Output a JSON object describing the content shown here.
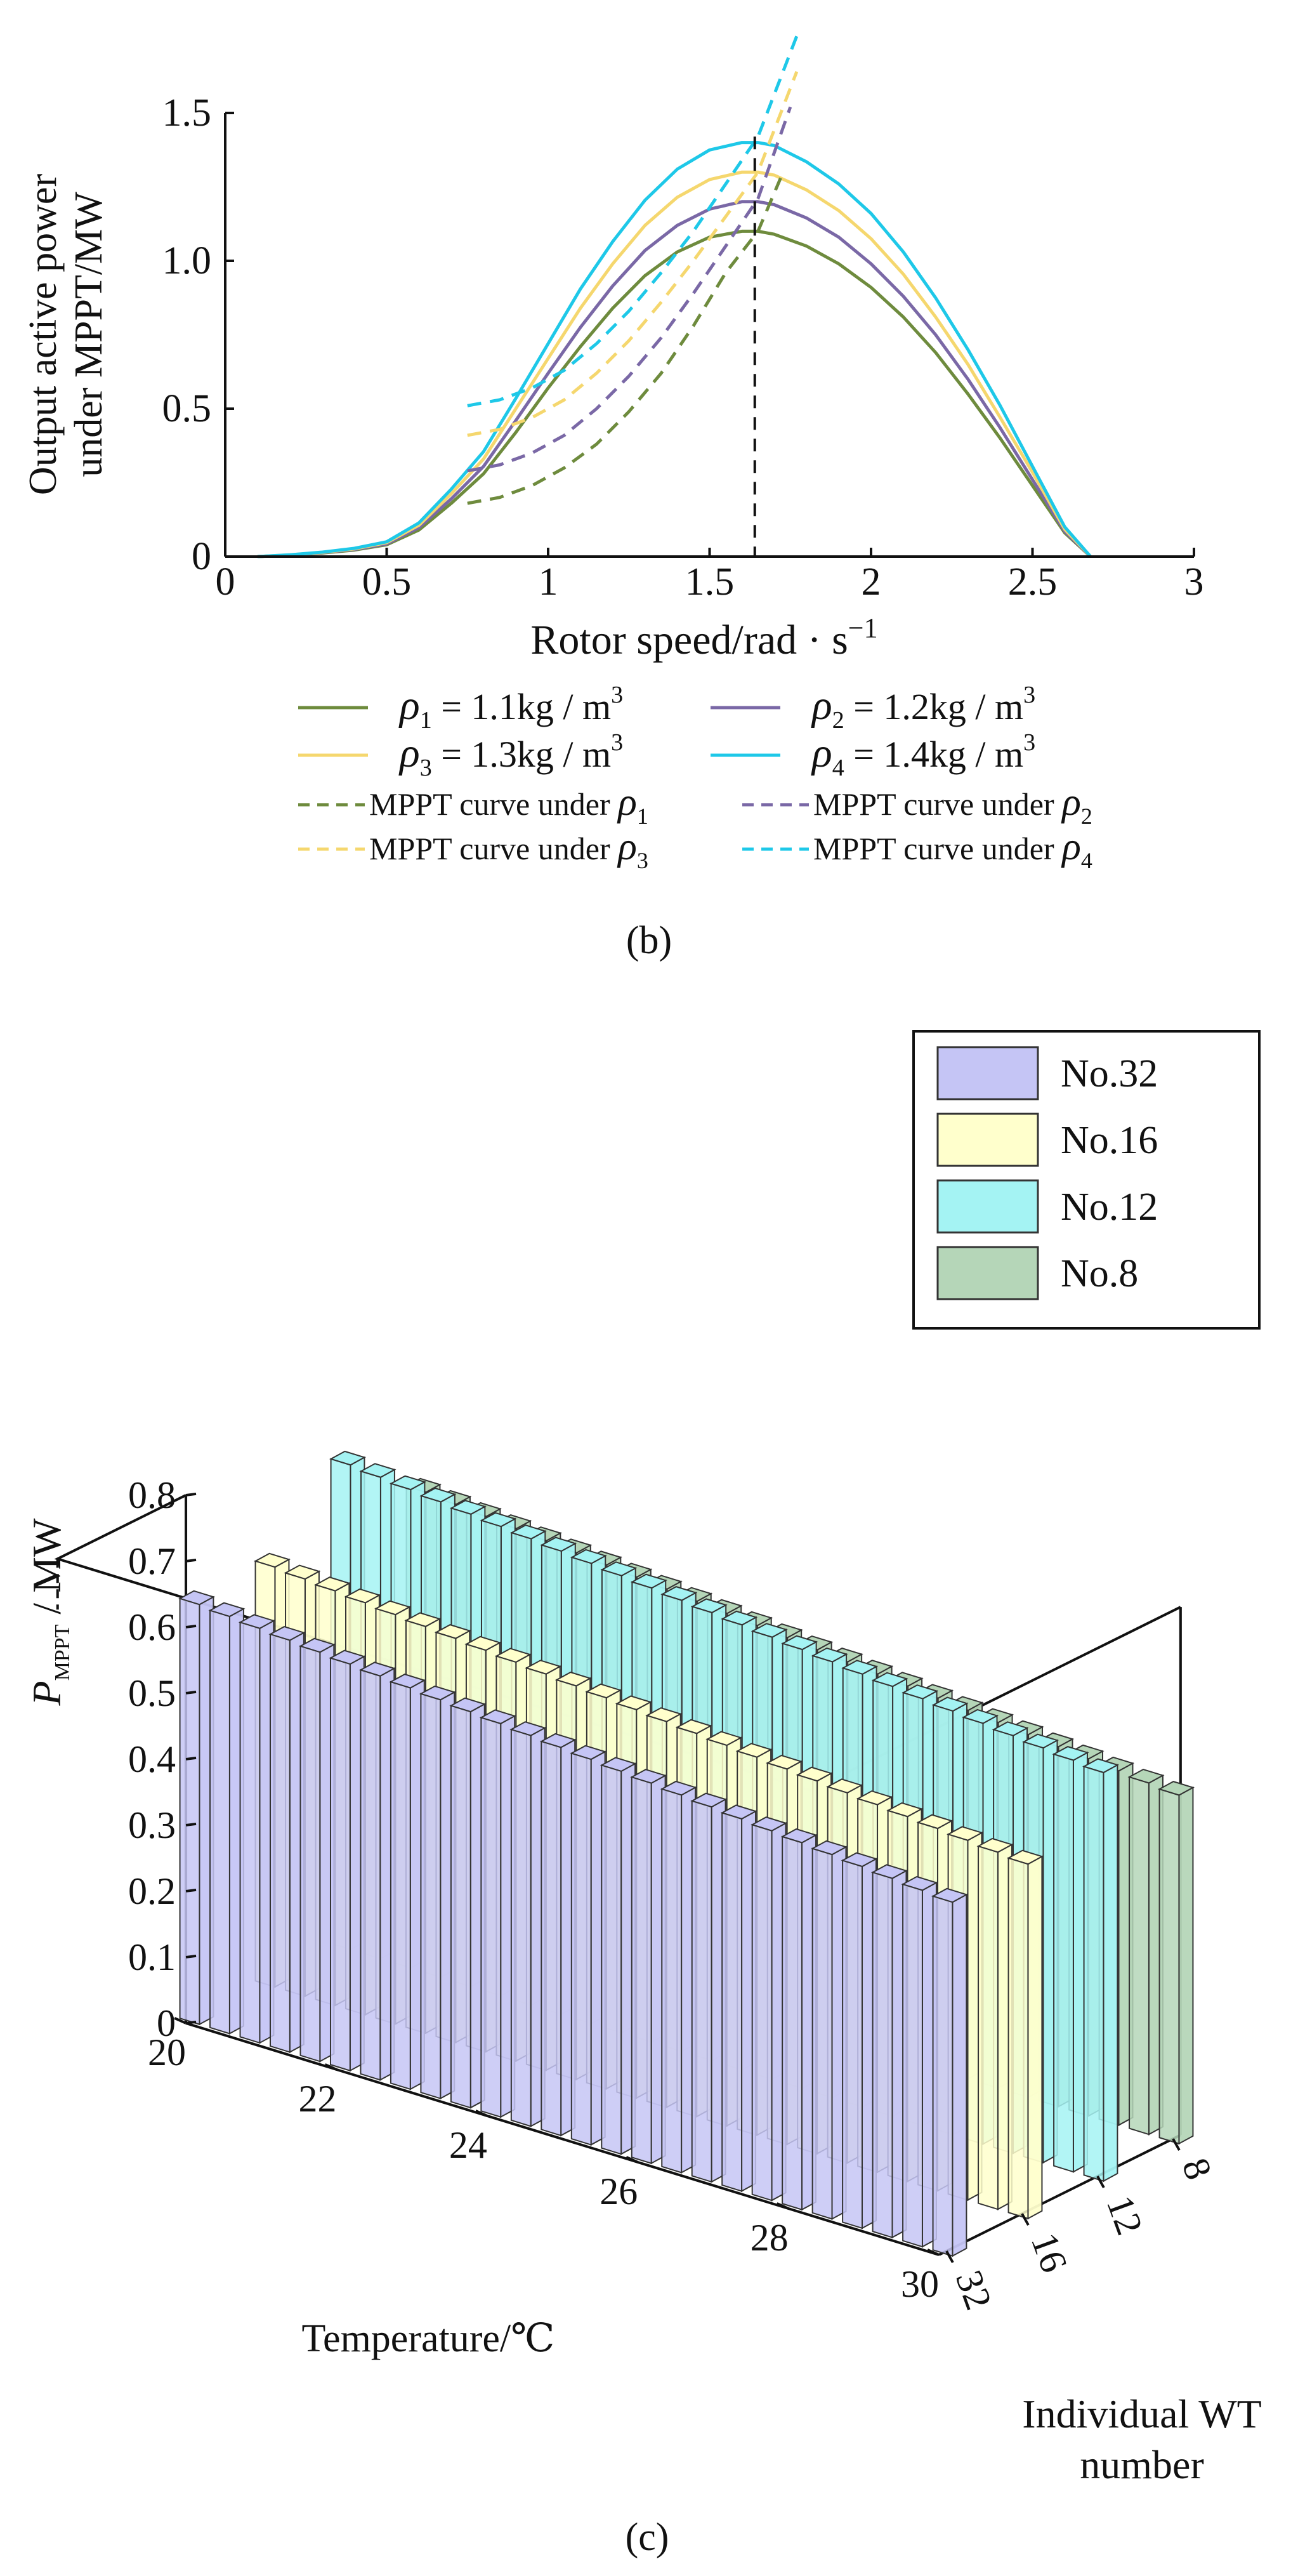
{
  "chart_data": [
    {
      "type": "line",
      "panel_label": "(b)",
      "ylabel_line1": "Output active power",
      "ylabel_line2": "under MPPT/MW",
      "xlabel": "Rotor speed/rad · s",
      "xlabel_sup": "−1",
      "xlim": [
        0,
        3
      ],
      "ylim": [
        0,
        1.5
      ],
      "xticks": [
        0,
        0.5,
        1,
        1.5,
        2,
        2.5,
        3
      ],
      "xtick_labels": [
        "0",
        "0.5",
        "1",
        "1.5",
        "2",
        "2.5",
        "3"
      ],
      "yticks": [
        0,
        0.5,
        1.0,
        1.5
      ],
      "ytick_labels": [
        "0",
        "0.5",
        "1.0",
        "1.5"
      ],
      "vline_x": 1.64,
      "series": [
        {
          "name": "ρ1 = 1.1kg / m3",
          "sym": "ρ",
          "sub": "1",
          "rest": " = 1.1kg / m",
          "sup": "3",
          "color": "#6e8b3d",
          "dash": false,
          "peak": 1.1,
          "x": [
            0.1,
            0.2,
            0.3,
            0.4,
            0.5,
            0.6,
            0.7,
            0.8,
            0.9,
            1.0,
            1.1,
            1.2,
            1.3,
            1.4,
            1.5,
            1.6,
            1.65,
            1.7,
            1.8,
            1.9,
            2.0,
            2.1,
            2.2,
            2.3,
            2.4,
            2.5,
            2.6,
            2.68
          ],
          "y": [
            0.0,
            0.005,
            0.012,
            0.022,
            0.04,
            0.09,
            0.18,
            0.28,
            0.42,
            0.57,
            0.71,
            0.84,
            0.95,
            1.03,
            1.08,
            1.1,
            1.1,
            1.09,
            1.05,
            0.99,
            0.91,
            0.81,
            0.69,
            0.55,
            0.4,
            0.24,
            0.08,
            0.0
          ]
        },
        {
          "name": "ρ2 = 1.2kg / m3",
          "sym": "ρ",
          "sub": "2",
          "rest": " = 1.2kg / m",
          "sup": "3",
          "color": "#7a68a6",
          "dash": false,
          "peak": 1.2,
          "x": [
            0.1,
            0.2,
            0.3,
            0.4,
            0.5,
            0.6,
            0.7,
            0.8,
            0.9,
            1.0,
            1.1,
            1.2,
            1.3,
            1.4,
            1.5,
            1.6,
            1.65,
            1.7,
            1.8,
            1.9,
            2.0,
            2.1,
            2.2,
            2.3,
            2.4,
            2.5,
            2.6,
            2.68
          ],
          "y": [
            0.0,
            0.005,
            0.013,
            0.024,
            0.043,
            0.098,
            0.195,
            0.305,
            0.46,
            0.62,
            0.775,
            0.915,
            1.035,
            1.12,
            1.175,
            1.2,
            1.2,
            1.19,
            1.145,
            1.08,
            0.99,
            0.88,
            0.75,
            0.6,
            0.435,
            0.26,
            0.085,
            0.0
          ]
        },
        {
          "name": "ρ3 = 1.3kg / m3",
          "sym": "ρ",
          "sub": "3",
          "rest": " = 1.3kg / m",
          "sup": "3",
          "color": "#f5d76e",
          "dash": false,
          "peak": 1.3,
          "x": [
            0.1,
            0.2,
            0.3,
            0.4,
            0.5,
            0.6,
            0.7,
            0.8,
            0.9,
            1.0,
            1.1,
            1.2,
            1.3,
            1.4,
            1.5,
            1.6,
            1.65,
            1.7,
            1.8,
            1.9,
            2.0,
            2.1,
            2.2,
            2.3,
            2.4,
            2.5,
            2.6,
            2.68
          ],
          "y": [
            0.0,
            0.006,
            0.014,
            0.026,
            0.047,
            0.106,
            0.212,
            0.33,
            0.5,
            0.67,
            0.84,
            0.99,
            1.12,
            1.215,
            1.275,
            1.3,
            1.3,
            1.29,
            1.24,
            1.17,
            1.075,
            0.955,
            0.81,
            0.65,
            0.47,
            0.285,
            0.092,
            0.0
          ]
        },
        {
          "name": "ρ4 = 1.4kg / m3",
          "sym": "ρ",
          "sub": "4",
          "rest": " = 1.4kg / m",
          "sup": "3",
          "color": "#1ec8e8",
          "dash": false,
          "peak": 1.4,
          "x": [
            0.1,
            0.2,
            0.3,
            0.4,
            0.5,
            0.6,
            0.7,
            0.8,
            0.9,
            1.0,
            1.1,
            1.2,
            1.3,
            1.4,
            1.5,
            1.6,
            1.65,
            1.7,
            1.8,
            1.9,
            2.0,
            2.1,
            2.2,
            2.3,
            2.4,
            2.5,
            2.6,
            2.68
          ],
          "y": [
            0.0,
            0.006,
            0.015,
            0.028,
            0.05,
            0.114,
            0.228,
            0.355,
            0.535,
            0.72,
            0.905,
            1.065,
            1.205,
            1.31,
            1.375,
            1.4,
            1.4,
            1.39,
            1.335,
            1.26,
            1.16,
            1.03,
            0.875,
            0.7,
            0.51,
            0.305,
            0.1,
            0.0
          ]
        },
        {
          "name": "MPPT curve under ρ1",
          "label": "MPPT curve under ",
          "sym": "ρ",
          "sub": "1",
          "color": "#6e8b3d",
          "dash": true,
          "x": [
            0.75,
            0.85,
            0.95,
            1.05,
            1.15,
            1.25,
            1.35,
            1.45,
            1.55,
            1.65,
            1.72
          ],
          "y": [
            0.18,
            0.2,
            0.24,
            0.3,
            0.38,
            0.49,
            0.62,
            0.78,
            0.96,
            1.1,
            1.28
          ]
        },
        {
          "name": "MPPT curve under ρ2",
          "label": "MPPT curve under ",
          "sym": "ρ",
          "sub": "2",
          "color": "#7a68a6",
          "dash": true,
          "x": [
            0.75,
            0.85,
            0.95,
            1.05,
            1.15,
            1.25,
            1.35,
            1.45,
            1.55,
            1.65,
            1.75
          ],
          "y": [
            0.29,
            0.31,
            0.35,
            0.41,
            0.5,
            0.61,
            0.74,
            0.89,
            1.05,
            1.21,
            1.52
          ]
        },
        {
          "name": "MPPT curve under ρ3",
          "label": "MPPT curve under ",
          "sym": "ρ",
          "sub": "3",
          "color": "#f5d76e",
          "dash": true,
          "x": [
            0.75,
            0.85,
            0.95,
            1.05,
            1.15,
            1.25,
            1.35,
            1.45,
            1.55,
            1.65,
            1.77
          ],
          "y": [
            0.41,
            0.43,
            0.47,
            0.53,
            0.62,
            0.73,
            0.86,
            1.0,
            1.15,
            1.3,
            1.64
          ]
        },
        {
          "name": "MPPT curve under ρ4",
          "label": "MPPT curve under ",
          "sym": "ρ",
          "sub": "4",
          "color": "#1ec8e8",
          "dash": true,
          "x": [
            0.75,
            0.85,
            0.95,
            1.05,
            1.15,
            1.25,
            1.35,
            1.45,
            1.55,
            1.65,
            1.77
          ],
          "y": [
            0.51,
            0.53,
            0.57,
            0.63,
            0.72,
            0.83,
            0.96,
            1.1,
            1.26,
            1.42,
            1.76
          ]
        }
      ]
    },
    {
      "type": "bar3d",
      "panel_label": "(c)",
      "ylabel_sym": "P",
      "ylabel_sub": "MPPT",
      "ylabel_rest": " / MW",
      "xlabel": "Temperature/℃",
      "depth_label_line1": "Individual WT",
      "depth_label_line2": "number",
      "zlim": [
        0,
        0.8
      ],
      "zticks": [
        0,
        0.1,
        0.2,
        0.3,
        0.4,
        0.5,
        0.6,
        0.7,
        0.8
      ],
      "ztick_labels": [
        "0",
        "0.1",
        "0.2",
        "0.3",
        "0.4",
        "0.5",
        "0.6",
        "0.7",
        "0.8"
      ],
      "xlim": [
        20,
        30
      ],
      "xticks": [
        20,
        22,
        24,
        26,
        28,
        30
      ],
      "xtick_labels": [
        "20",
        "22",
        "24",
        "26",
        "28",
        "30"
      ],
      "depth_tick_labels": [
        "32",
        "16",
        "12",
        "8"
      ],
      "temperatures": [
        20.0,
        20.4,
        20.8,
        21.2,
        21.6,
        22.0,
        22.4,
        22.8,
        23.2,
        23.6,
        24.0,
        24.4,
        24.8,
        25.2,
        25.6,
        26.0,
        26.4,
        26.8,
        27.2,
        27.6,
        28.0,
        28.4,
        28.8,
        29.2,
        29.6,
        30.0
      ],
      "series": [
        {
          "name": "No.32",
          "color": "#c5c5f5",
          "start": 0.636,
          "end": 0.536
        },
        {
          "name": "No.16",
          "color": "#ffffcc",
          "start": 0.636,
          "end": 0.537
        },
        {
          "name": "No.12",
          "color": "#a4f3f3",
          "start": 0.734,
          "end": 0.619
        },
        {
          "name": "No.8",
          "color": "#b5d6b8",
          "start": 0.636,
          "end": 0.528
        }
      ]
    }
  ]
}
